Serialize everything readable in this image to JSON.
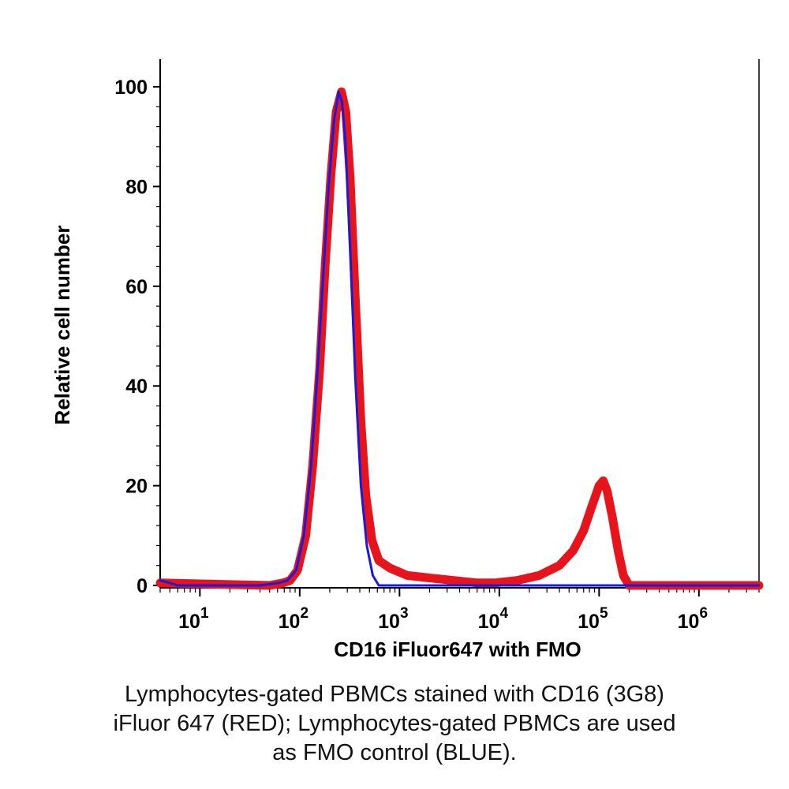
{
  "chart_data": {
    "type": "line",
    "xlabel": "CD16 iFluor647 with FMO",
    "ylabel": "Relative cell number",
    "xscale": "log",
    "xlim": [
      4,
      4000000
    ],
    "ylim": [
      0,
      100
    ],
    "x_ticks": [
      {
        "base": "10",
        "exp": "1",
        "value": 10
      },
      {
        "base": "10",
        "exp": "2",
        "value": 100
      },
      {
        "base": "10",
        "exp": "3",
        "value": 1000
      },
      {
        "base": "10",
        "exp": "4",
        "value": 10000
      },
      {
        "base": "10",
        "exp": "5",
        "value": 100000
      },
      {
        "base": "10",
        "exp": "6",
        "value": 1000000
      }
    ],
    "y_ticks": [
      {
        "label": "0",
        "value": 0
      },
      {
        "label": "20",
        "value": 20
      },
      {
        "label": "40",
        "value": 40
      },
      {
        "label": "60",
        "value": 60
      },
      {
        "label": "80",
        "value": 80
      },
      {
        "label": "100",
        "value": 100
      }
    ],
    "grid": false,
    "legend": "none",
    "series": [
      {
        "color": "#1a1adc",
        "points": [
          [
            4,
            1
          ],
          [
            5,
            0.5
          ],
          [
            6,
            0
          ],
          [
            40,
            0
          ],
          [
            62,
            0.5
          ],
          [
            75,
            1
          ],
          [
            92,
            3
          ],
          [
            110,
            10
          ],
          [
            130,
            24
          ],
          [
            150,
            42
          ],
          [
            172,
            62
          ],
          [
            195,
            80
          ],
          [
            220,
            93
          ],
          [
            245,
            99
          ],
          [
            265,
            97
          ],
          [
            285,
            90
          ],
          [
            320,
            68
          ],
          [
            360,
            42
          ],
          [
            410,
            20
          ],
          [
            470,
            8
          ],
          [
            540,
            2
          ],
          [
            620,
            0
          ],
          [
            4000000,
            0
          ]
        ]
      },
      {
        "color": "#e8141c",
        "points": [
          [
            4,
            0.5
          ],
          [
            50,
            0
          ],
          [
            68,
            0.5
          ],
          [
            80,
            1
          ],
          [
            95,
            3
          ],
          [
            115,
            10
          ],
          [
            135,
            24
          ],
          [
            158,
            43
          ],
          [
            180,
            64
          ],
          [
            205,
            82
          ],
          [
            232,
            95
          ],
          [
            262,
            99
          ],
          [
            290,
            95
          ],
          [
            320,
            82
          ],
          [
            360,
            58
          ],
          [
            410,
            33
          ],
          [
            460,
            18
          ],
          [
            530,
            9
          ],
          [
            620,
            5
          ],
          [
            800,
            3.5
          ],
          [
            1200,
            2
          ],
          [
            2000,
            1.5
          ],
          [
            3500,
            1
          ],
          [
            6000,
            0.5
          ],
          [
            9000,
            0.5
          ],
          [
            15000,
            1
          ],
          [
            25000,
            2
          ],
          [
            40000,
            4
          ],
          [
            55000,
            7
          ],
          [
            70000,
            11
          ],
          [
            85000,
            16
          ],
          [
            100000,
            20
          ],
          [
            110000,
            21
          ],
          [
            120000,
            19
          ],
          [
            135000,
            14
          ],
          [
            155000,
            7
          ],
          [
            175000,
            2
          ],
          [
            200000,
            0
          ],
          [
            4000000,
            0
          ]
        ]
      }
    ]
  },
  "caption": {
    "line1": "Lymphocytes-gated PBMCs stained with CD16 (3G8)",
    "line2": "iFluor 647 (RED); Lymphocytes-gated PBMCs are used",
    "line3": "as FMO control (BLUE)."
  }
}
